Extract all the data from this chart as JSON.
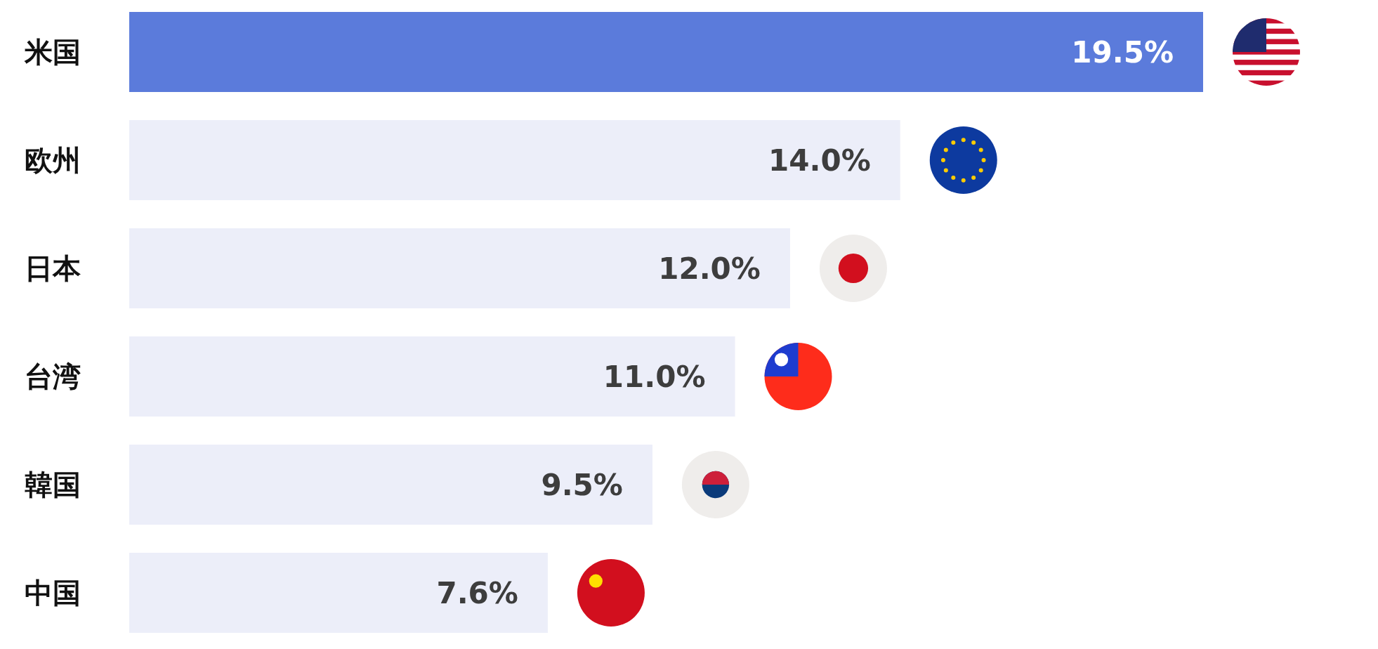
{
  "chart_data": {
    "type": "bar",
    "orientation": "horizontal",
    "categories": [
      "米国",
      "欧州",
      "日本",
      "台湾",
      "韓国",
      "中国"
    ],
    "values": [
      19.5,
      14.0,
      12.0,
      11.0,
      9.5,
      7.6
    ],
    "colors": [
      "#5b7bdb",
      "#eceef9",
      "#eceef9",
      "#eceef9",
      "#eceef9",
      "#eceef9"
    ],
    "value_labels": [
      "19.5%",
      "14.0%",
      "12.0%",
      "11.0%",
      "9.5%",
      "7.6%"
    ]
  }
}
